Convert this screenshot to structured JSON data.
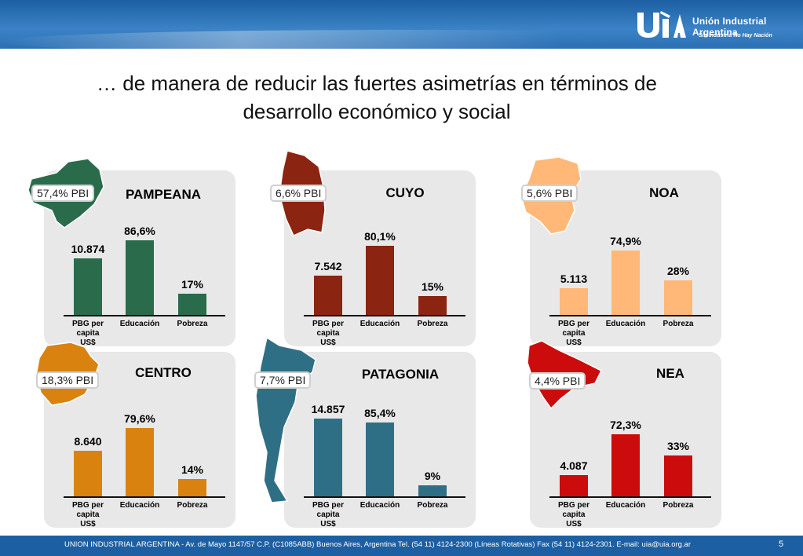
{
  "header": {
    "logo_name": "Unión Industrial Argentina",
    "logo_tagline": "Sin Industria No Hay Nación"
  },
  "title_line1": "… de manera de reducir las fuertes asimetrías en términos de",
  "title_line2": "desarrollo económico y social",
  "categories": [
    "PBG per capita US$",
    "Educación",
    "Pobreza"
  ],
  "chart_data": [
    {
      "type": "bar",
      "title": "PAMPEANA",
      "pbi_share": "57,4% PBI",
      "color": "#2a6b4b",
      "map_color": "#2a6b4b",
      "categories": [
        "PBG per capita US$",
        "Educación",
        "Pobreza"
      ],
      "labels": [
        "10.874",
        "86,6%",
        "17%"
      ],
      "values": [
        10874,
        86.6,
        17
      ]
    },
    {
      "type": "bar",
      "title": "CUYO",
      "pbi_share": "6,6% PBI",
      "color": "#8b2410",
      "map_color": "#8b2410",
      "categories": [
        "PBG per capita US$",
        "Educación",
        "Pobreza"
      ],
      "labels": [
        "7.542",
        "80,1%",
        "15%"
      ],
      "values": [
        7542,
        80.1,
        15
      ]
    },
    {
      "type": "bar",
      "title": "NOA",
      "pbi_share": "5,6% PBI",
      "color": "#ffb877",
      "map_color": "#ffb877",
      "categories": [
        "PBG per capita US$",
        "Educación",
        "Pobreza"
      ],
      "labels": [
        "5.113",
        "74,9%",
        "28%"
      ],
      "values": [
        5113,
        74.9,
        28
      ]
    },
    {
      "type": "bar",
      "title": "CENTRO",
      "pbi_share": "18,3% PBI",
      "color": "#d98210",
      "map_color": "#d98210",
      "categories": [
        "PBG per capita US$",
        "Educación",
        "Pobreza"
      ],
      "labels": [
        "8.640",
        "79,6%",
        "14%"
      ],
      "values": [
        8640,
        79.6,
        14
      ]
    },
    {
      "type": "bar",
      "title": "PATAGONIA",
      "pbi_share": "7,7% PBI",
      "color": "#2f6f86",
      "map_color": "#2f6f86",
      "categories": [
        "PBG per capita US$",
        "Educación",
        "Pobreza"
      ],
      "labels": [
        "14.857",
        "85,4%",
        "9%"
      ],
      "values": [
        14857,
        85.4,
        9
      ]
    },
    {
      "type": "bar",
      "title": "NEA",
      "pbi_share": "4,4% PBI",
      "color": "#cc0c0c",
      "map_color": "#cc0c0c",
      "categories": [
        "PBG per capita US$",
        "Educación",
        "Pobreza"
      ],
      "labels": [
        "4.087",
        "72,3%",
        "33%"
      ],
      "values": [
        4087,
        72.3,
        33
      ]
    }
  ],
  "footer": {
    "text": "UNION INDUSTRIAL ARGENTINA -  Av. de Mayo 1147/57  C.P. (C1085ABB)  Buenos Aires, Argentina Tel. (54 11) 4124-2300   (Líneas Rotativas)  Fax (54 11) 4124-2301.   E-mail: uia@uia.org.ar",
    "page": "5"
  }
}
